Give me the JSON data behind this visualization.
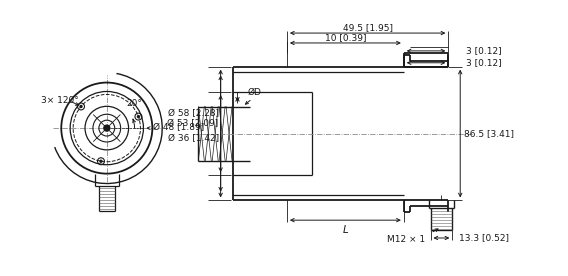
{
  "bg_color": "#ffffff",
  "line_color": "#1a1a1a",
  "dim_color": "#1a1a1a",
  "annotations": {
    "angle_label": "20°",
    "bolt_circle": "3× 120°",
    "d58": "Ø 58 [2.28]",
    "d48": "Ø 48 [1.89]",
    "d53": "Ø 53 [2.09]",
    "d36": "Ø 36 [1.42]",
    "dD": "ØD",
    "dim_495": "49.5 [1.95]",
    "dim_3a": "3 [0.12]",
    "dim_3b": "3 [0.12]",
    "dim_10": "10 [0.39]",
    "dim_L": "L",
    "dim_865": "86.5 [3.41]",
    "dim_133": "13.3 [0.52]",
    "dim_M12": "M12 × 1"
  }
}
